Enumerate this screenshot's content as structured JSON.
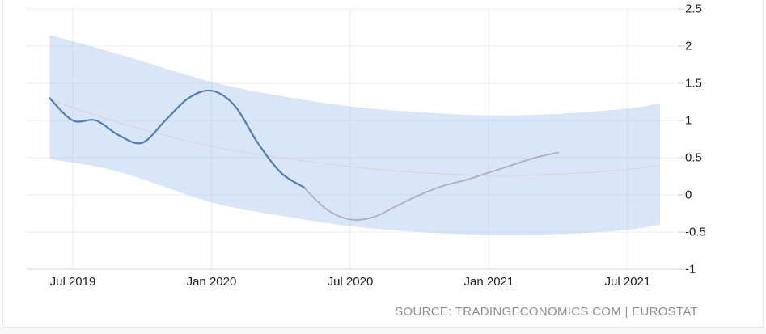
{
  "source": {
    "label": "SOURCE: TRADINGECONOMICS.COM | EUROSTAT"
  },
  "chart_data": {
    "type": "line",
    "title": "",
    "xlabel": "",
    "ylabel": "",
    "y_axis_side": "right",
    "grid": true,
    "legend": "none",
    "ylim": [
      -1,
      2.5
    ],
    "y_ticks": [
      2.5,
      2,
      1.5,
      1,
      0.5,
      0,
      -0.5,
      -1
    ],
    "y_tick_labels": [
      "2.5",
      "2",
      "1.5",
      "1",
      "0.5",
      "0",
      "-0.5",
      "-1"
    ],
    "x_ticks": [
      {
        "label": "Jul 2019",
        "month_index": 1
      },
      {
        "label": "Jan 2020",
        "month_index": 7
      },
      {
        "label": "Jul 2020",
        "month_index": 13
      },
      {
        "label": "Jan 2021",
        "month_index": 19
      },
      {
        "label": "Jul 2021",
        "month_index": 25
      }
    ],
    "x_start_month": "Jun 2019",
    "series": [
      {
        "name": "actual",
        "color": "#4d7ebc",
        "width": 2.2,
        "start_index": 0,
        "months": [
          "Jun 2019",
          "Jul 2019",
          "Aug 2019",
          "Sep 2019",
          "Oct 2019",
          "Nov 2019",
          "Dec 2019",
          "Jan 2020",
          "Feb 2020",
          "Mar 2020",
          "Apr 2020",
          "May 2020"
        ],
        "values": [
          1.3,
          1.0,
          1.0,
          0.8,
          0.7,
          1.0,
          1.3,
          1.4,
          1.2,
          0.7,
          0.3,
          0.1
        ]
      },
      {
        "name": "forecast",
        "color": "#a9b0b7",
        "width": 1.8,
        "start_index": 11,
        "months": [
          "May 2020",
          "Jun 2020",
          "Jul 2020",
          "Aug 2020",
          "Sep 2020",
          "Oct 2020",
          "Nov 2020",
          "Dec 2020",
          "Jan 2021",
          "Feb 2021",
          "Mar 2021",
          "Apr 2021"
        ],
        "values": [
          0.1,
          -0.2,
          -0.33,
          -0.3,
          -0.15,
          0.0,
          0.12,
          0.2,
          0.3,
          0.4,
          0.5,
          0.57
        ]
      },
      {
        "name": "trend",
        "color": "#d4d8dc",
        "width": 1.2,
        "month_index": [
          0,
          3,
          7,
          10,
          13,
          16,
          19,
          22,
          25,
          26.4
        ],
        "values": [
          1.28,
          0.97,
          0.65,
          0.5,
          0.38,
          0.3,
          0.26,
          0.28,
          0.34,
          0.4
        ]
      }
    ],
    "band": {
      "name": "forecast-confidence-band",
      "fill_rgba": [
        155,
        190,
        235,
        0.38
      ],
      "month_index": [
        0,
        3,
        7,
        10,
        13,
        16,
        19,
        22,
        25,
        26.4
      ],
      "upper": [
        2.15,
        1.89,
        1.52,
        1.33,
        1.19,
        1.11,
        1.07,
        1.09,
        1.16,
        1.23
      ],
      "lower": [
        0.48,
        0.31,
        -0.1,
        -0.28,
        -0.42,
        -0.5,
        -0.54,
        -0.53,
        -0.47,
        -0.4
      ]
    },
    "colors": {
      "gridline": "#ececec",
      "axis_line": "#d6d6d6",
      "tick": "#c9c9c9",
      "axis_text": "#1f1f1f",
      "source_text": "#8f8f8f"
    }
  }
}
